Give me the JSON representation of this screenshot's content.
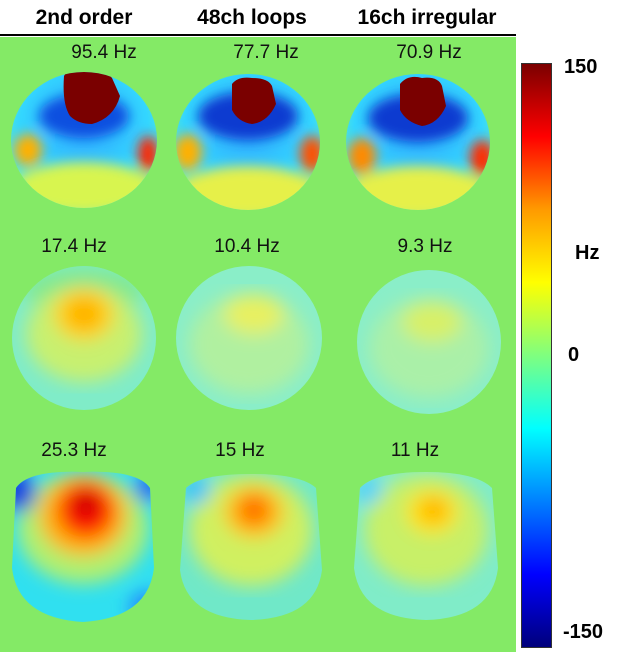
{
  "columns": [
    {
      "title": "2nd order"
    },
    {
      "title": "48ch loops"
    },
    {
      "title": "16ch irregular"
    }
  ],
  "rows": [
    {
      "labels": [
        "95.4 Hz",
        "77.7 Hz",
        "70.9 Hz"
      ]
    },
    {
      "labels": [
        "17.4 Hz",
        "10.4 Hz",
        "9.3 Hz"
      ]
    },
    {
      "labels": [
        "25.3 Hz",
        "15 Hz",
        "11 Hz"
      ]
    }
  ],
  "colorbar": {
    "max_label": "150",
    "mid_label": "0",
    "min_label": "-150",
    "unit_label": "Hz",
    "max_value": 150,
    "min_value": -150,
    "colors": [
      "#7a0000",
      "#ff0000",
      "#ff9a00",
      "#ffff00",
      "#7fff7f",
      "#00ffff",
      "#0080ff",
      "#0000ff",
      "#00007a"
    ]
  },
  "colors": {
    "background": "#84ea66"
  }
}
